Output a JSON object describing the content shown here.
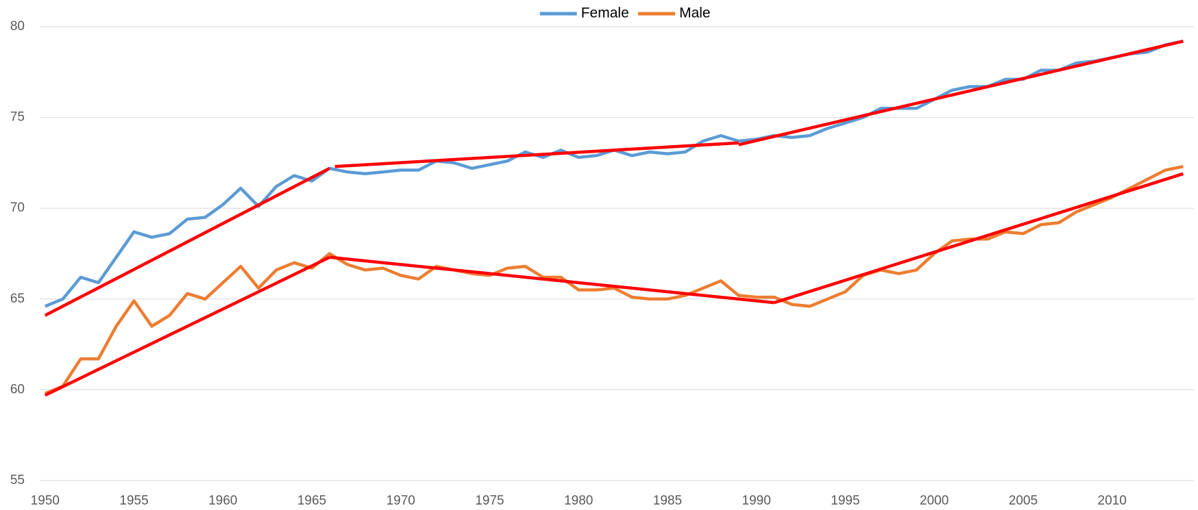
{
  "chart_data": {
    "type": "line",
    "x": [
      1950,
      1951,
      1952,
      1953,
      1954,
      1955,
      1956,
      1957,
      1958,
      1959,
      1960,
      1961,
      1962,
      1963,
      1964,
      1965,
      1966,
      1967,
      1968,
      1969,
      1970,
      1971,
      1972,
      1973,
      1974,
      1975,
      1976,
      1977,
      1978,
      1979,
      1980,
      1981,
      1982,
      1983,
      1984,
      1985,
      1986,
      1987,
      1988,
      1989,
      1990,
      1991,
      1992,
      1993,
      1994,
      1995,
      1996,
      1997,
      1998,
      1999,
      2000,
      2001,
      2002,
      2003,
      2004,
      2005,
      2006,
      2007,
      2008,
      2009,
      2010,
      2011,
      2012,
      2013,
      2014
    ],
    "series": [
      {
        "name": "Female",
        "color": "#5b9bd5",
        "values": [
          64.6,
          65.0,
          66.2,
          65.9,
          67.3,
          68.7,
          68.4,
          68.6,
          69.4,
          69.5,
          70.2,
          71.1,
          70.1,
          71.2,
          71.8,
          71.5,
          72.2,
          72.0,
          71.9,
          72.0,
          72.1,
          72.1,
          72.6,
          72.5,
          72.2,
          72.4,
          72.6,
          73.1,
          72.8,
          73.2,
          72.8,
          72.9,
          73.2,
          72.9,
          73.1,
          73.0,
          73.1,
          73.7,
          74.0,
          73.7,
          73.8,
          74.0,
          73.9,
          74.0,
          74.4,
          74.7,
          75.0,
          75.5,
          75.5,
          75.5,
          76.0,
          76.5,
          76.7,
          76.7,
          77.1,
          77.1,
          77.6,
          77.6,
          78.0,
          78.1,
          78.3,
          78.5,
          78.6,
          79.0,
          79.2
        ]
      },
      {
        "name": "Male",
        "color": "#ed7d31",
        "values": [
          59.8,
          60.2,
          61.7,
          61.7,
          63.5,
          64.9,
          63.5,
          64.1,
          65.3,
          65.0,
          65.9,
          66.8,
          65.6,
          66.6,
          67.0,
          66.7,
          67.5,
          66.9,
          66.6,
          66.7,
          66.3,
          66.1,
          66.8,
          66.6,
          66.4,
          66.3,
          66.7,
          66.8,
          66.2,
          66.2,
          65.5,
          65.5,
          65.6,
          65.1,
          65.0,
          65.0,
          65.2,
          65.6,
          66.0,
          65.2,
          65.1,
          65.1,
          64.7,
          64.6,
          65.0,
          65.4,
          66.3,
          66.6,
          66.4,
          66.6,
          67.5,
          68.2,
          68.3,
          68.3,
          68.7,
          68.6,
          69.1,
          69.2,
          69.8,
          70.2,
          70.6,
          71.1,
          71.6,
          72.1,
          72.3
        ]
      }
    ],
    "trend_color": "#ff0000",
    "trend_lines": [
      {
        "x": [
          1950,
          1966
        ],
        "values": [
          64.1,
          72.2
        ]
      },
      {
        "x": [
          1966.3,
          1989
        ],
        "values": [
          72.3,
          73.6
        ]
      },
      {
        "x": [
          1989,
          2014
        ],
        "values": [
          73.5,
          79.2
        ]
      },
      {
        "x": [
          1950,
          1966
        ],
        "values": [
          59.7,
          67.3
        ]
      },
      {
        "x": [
          1966,
          1991
        ],
        "values": [
          67.3,
          64.8
        ]
      },
      {
        "x": [
          1991,
          2014
        ],
        "values": [
          64.8,
          71.9
        ]
      }
    ],
    "xlim": [
      1949.7,
      2014.6
    ],
    "xticks": [
      1950,
      1955,
      1960,
      1965,
      1970,
      1975,
      1980,
      1985,
      1990,
      1995,
      2000,
      2005,
      2010
    ],
    "ylim": [
      55,
      80
    ],
    "yticks": [
      55,
      60,
      65,
      70,
      75,
      80
    ],
    "grid": true,
    "legend": "top"
  }
}
